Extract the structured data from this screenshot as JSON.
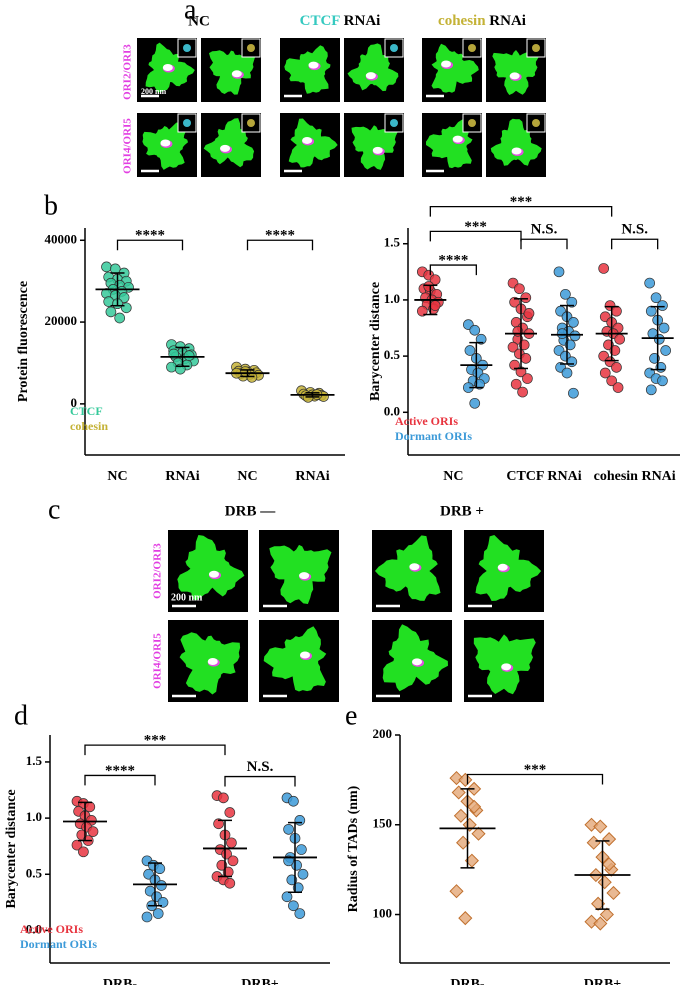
{
  "panel_labels": [
    "a",
    "b",
    "c",
    "d",
    "e"
  ],
  "panels": {
    "a": {
      "columns": [
        {
          "text": "NC"
        },
        {
          "highlight": "CTCF",
          "text": "RNAi"
        },
        {
          "highlight": "cohesin",
          "text": "RNAi"
        }
      ],
      "rows": [
        "ORI2/ORI3",
        "ORI4/ORI5"
      ],
      "scale_label": "200 nm"
    },
    "c": {
      "columns": [
        "DRB —",
        "DRB +"
      ],
      "rows": [
        "ORI2/ORI3",
        "ORI4/ORI5"
      ],
      "scale_label": "200 nm"
    }
  },
  "chart_data": [
    {
      "type": "dot",
      "ylabel": "Protein fluorescence",
      "categories": [
        "NC",
        "RNAi",
        "NC",
        "RNAi"
      ],
      "ylim": [
        -12500,
        43000
      ],
      "yticks": [
        0,
        20000,
        40000
      ],
      "legend": "lower left",
      "marker": "circle",
      "series": [
        {
          "name": "CTCF",
          "color": "#35c99a",
          "values": [
            28000,
            11500,
            null,
            null
          ],
          "errors": [
            4000,
            2300,
            null,
            null
          ],
          "points": [
            [
              33500,
              33000,
              32000,
              31000,
              30500,
              30000,
              29500,
              29000,
              28500,
              28000,
              27500,
              27000,
              26500,
              26000,
              25000,
              24500,
              23500,
              22500,
              21000
            ],
            [
              14500,
              14000,
              13500,
              13000,
              12500,
              12000,
              11500,
              11000,
              10500,
              10000,
              9500,
              9000,
              8500,
              11800,
              12200
            ],
            [],
            []
          ]
        },
        {
          "name": "cohesin",
          "color": "#c4b236",
          "values": [
            null,
            null,
            7500,
            2200
          ],
          "errors": [
            null,
            null,
            800,
            500
          ],
          "points": [
            [],
            [],
            [
              9000,
              8500,
              8200,
              8000,
              7800,
              7600,
              7400,
              7200,
              7000,
              6800,
              6500,
              7500,
              7900
            ],
            [
              3200,
              2800,
              2600,
              2400,
              2200,
              2100,
              2000,
              1900,
              1800,
              1600,
              2300
            ]
          ]
        }
      ],
      "annotations": [
        {
          "text": "****",
          "y": 40000,
          "from": [
            0,
            0
          ],
          "to": [
            1,
            0
          ]
        },
        {
          "text": "****",
          "y": 40000,
          "from": [
            2,
            1
          ],
          "to": [
            3,
            1
          ]
        }
      ]
    },
    {
      "type": "dot",
      "ylabel": "Barycenter distance",
      "categories": [
        "NC",
        "CTCF RNAi",
        "cohesin RNAi"
      ],
      "ylim": [
        -0.38,
        1.64
      ],
      "yticks": [
        {
          "value": 0,
          "label": "0.0"
        },
        0.5,
        {
          "value": 1,
          "label": "1.0"
        },
        1.5
      ],
      "legend": "lower left",
      "marker": "circle",
      "series": [
        {
          "name": "Active ORIs",
          "color": "#e8343f",
          "values": [
            1.0,
            0.7,
            0.7
          ],
          "errors": [
            0.13,
            0.31,
            0.24
          ],
          "points": [
            [
              1.25,
              1.22,
              1.18,
              1.1,
              1.08,
              1.05,
              1.02,
              1.0,
              0.98,
              0.96,
              0.92,
              0.9,
              1.12,
              0.95
            ],
            [
              1.15,
              1.1,
              1.02,
              0.98,
              0.92,
              0.85,
              0.8,
              0.75,
              0.7,
              0.65,
              0.6,
              0.58,
              0.52,
              0.48,
              0.42,
              0.36,
              0.3,
              0.25,
              0.18,
              0.88,
              0.72
            ],
            [
              1.28,
              0.95,
              0.9,
              0.85,
              0.8,
              0.75,
              0.72,
              0.7,
              0.65,
              0.6,
              0.55,
              0.5,
              0.45,
              0.4,
              0.35,
              0.28,
              0.22
            ]
          ]
        },
        {
          "name": "Dormant ORIs",
          "color": "#3c9ad8",
          "values": [
            0.42,
            0.69,
            0.66
          ],
          "errors": [
            0.2,
            0.26,
            0.28
          ],
          "points": [
            [
              0.78,
              0.73,
              0.65,
              0.55,
              0.48,
              0.42,
              0.38,
              0.35,
              0.3,
              0.28,
              0.25,
              0.22,
              0.08
            ],
            [
              1.25,
              1.05,
              0.98,
              0.9,
              0.85,
              0.8,
              0.75,
              0.72,
              0.68,
              0.64,
              0.6,
              0.55,
              0.5,
              0.45,
              0.4,
              0.35,
              0.17,
              0.7
            ],
            [
              1.15,
              1.02,
              0.95,
              0.9,
              0.82,
              0.75,
              0.7,
              0.65,
              0.55,
              0.48,
              0.4,
              0.35,
              0.3,
              0.28,
              0.2
            ]
          ]
        }
      ],
      "annotations": [
        {
          "text": "****",
          "y": 1.31,
          "from": [
            0,
            0
          ],
          "to": [
            0,
            1
          ]
        },
        {
          "text": "***",
          "y": 1.61,
          "from": [
            0,
            0
          ],
          "to": [
            1,
            0
          ]
        },
        {
          "text": "***",
          "y": 1.83,
          "from": [
            0,
            0
          ],
          "to": [
            2,
            0
          ]
        },
        {
          "text": "N.S.",
          "y": 1.54,
          "from": [
            1,
            0
          ],
          "to": [
            1,
            1
          ]
        },
        {
          "text": "N.S.",
          "y": 1.54,
          "from": [
            2,
            0
          ],
          "to": [
            2,
            1
          ]
        }
      ]
    },
    {
      "type": "dot",
      "ylabel": "Barycenter distance",
      "categories": [
        "DRB-",
        "DRB+"
      ],
      "ylim": [
        -0.29,
        1.74
      ],
      "yticks": [
        {
          "value": 0,
          "label": "0.0"
        },
        0.5,
        {
          "value": 1,
          "label": "1.0"
        },
        1.5
      ],
      "legend": "lower left",
      "marker": "circle",
      "series": [
        {
          "name": "Active ORIs",
          "color": "#e8343f",
          "values": [
            0.97,
            0.73
          ],
          "errors": [
            0.17,
            0.25
          ],
          "points": [
            [
              1.15,
              1.13,
              1.1,
              1.06,
              1.02,
              0.98,
              0.95,
              0.92,
              0.88,
              0.85,
              0.8,
              0.76,
              0.7
            ],
            [
              1.2,
              1.18,
              1.05,
              0.95,
              0.85,
              0.78,
              0.72,
              0.68,
              0.62,
              0.58,
              0.52,
              0.48,
              0.45,
              0.42
            ]
          ]
        },
        {
          "name": "Dormant ORIs",
          "color": "#3c9ad8",
          "values": [
            0.41,
            0.65
          ],
          "errors": [
            0.19,
            0.31
          ],
          "points": [
            [
              0.62,
              0.58,
              0.55,
              0.5,
              0.45,
              0.4,
              0.35,
              0.3,
              0.25,
              0.22,
              0.15,
              0.12
            ],
            [
              1.18,
              1.15,
              0.98,
              0.9,
              0.82,
              0.72,
              0.65,
              0.58,
              0.5,
              0.45,
              0.38,
              0.3,
              0.22,
              0.15,
              0.62
            ]
          ]
        }
      ],
      "annotations": [
        {
          "text": "****",
          "y": 1.38,
          "from": [
            0,
            0
          ],
          "to": [
            0,
            1
          ]
        },
        {
          "text": "***",
          "y": 1.65,
          "from": [
            0,
            0
          ],
          "to": [
            1,
            0
          ]
        },
        {
          "text": "N.S.",
          "y": 1.37,
          "from": [
            1,
            0
          ],
          "to": [
            1,
            1
          ]
        }
      ]
    },
    {
      "type": "dot",
      "ylabel": "Radius of TADs (nm)",
      "categories": [
        "DRB-",
        "DRB+"
      ],
      "ylim": [
        73,
        200
      ],
      "yticks": [
        100,
        150,
        200
      ],
      "marker": "diamond",
      "series": [
        {
          "color": "#e3a878",
          "values": [
            148,
            122
          ],
          "errors": [
            22,
            19
          ],
          "points": [
            [
              176,
              175,
              170,
              168,
              163,
              158,
              155,
              150,
              145,
              140,
              130,
              113,
              98,
              160
            ],
            [
              150,
              149,
              142,
              140,
              132,
              125,
              122,
              118,
              112,
              106,
              100,
              96,
              95,
              128
            ]
          ]
        }
      ],
      "annotations": [
        {
          "text": "***",
          "y": 178,
          "from": [
            0,
            0
          ],
          "to": [
            1,
            0
          ]
        }
      ]
    }
  ]
}
